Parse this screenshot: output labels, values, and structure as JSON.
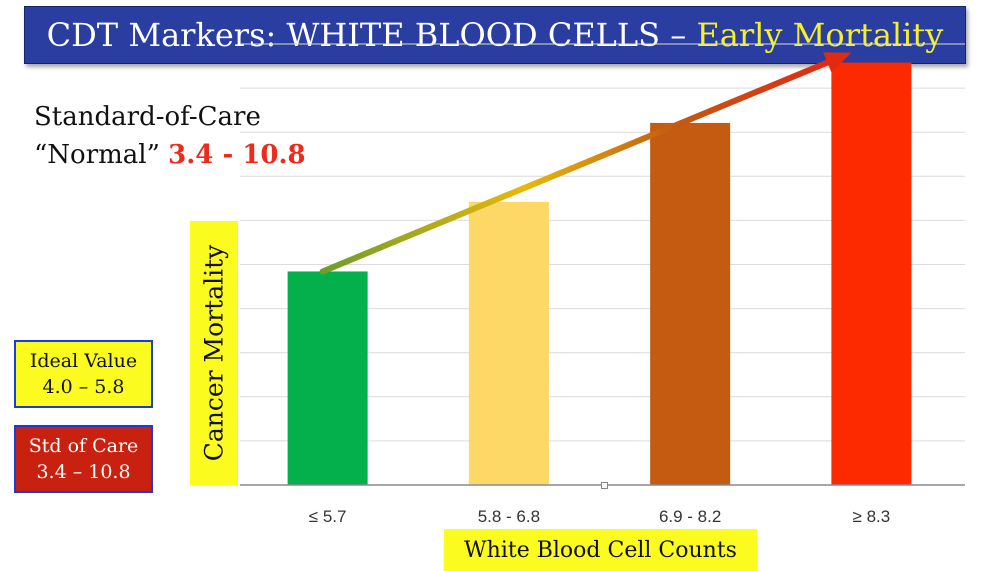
{
  "title": {
    "main": "CDT Markers: WHITE BLOOD CELLS –",
    "accent": "Early Mortality"
  },
  "standard_of_care": {
    "line1": "Standard-of-Care",
    "line2_prefix": "“Normal”",
    "range": "3.4 - 10.8"
  },
  "ideal_box": {
    "line1": "Ideal Value",
    "line2": "4.0 – 5.8"
  },
  "std_box": {
    "line1": "Std of Care",
    "line2": "3.4 – 10.8"
  },
  "colors": {
    "title_bg": "#2a3da0",
    "title_accent": "#f4f02a",
    "label_highlight": "#fbfb20",
    "std_box_bg": "#c8210f",
    "soc_range": "#ee2a1a"
  },
  "chart_data": {
    "type": "bar",
    "categories": [
      "≤ 5.7",
      "5.8 - 6.8",
      "6.9 - 8.2",
      "≥ 8.3"
    ],
    "values": [
      4.6,
      6.1,
      7.8,
      9.1
    ],
    "colors": [
      "#03b04c",
      "#fdd866",
      "#c55b11",
      "#fd2a00"
    ],
    "xlabel": "White Blood Cell Counts",
    "ylabel": "Cancer Mortality",
    "ylim": [
      0,
      9.5
    ],
    "y_ticks_shown": false,
    "grid": true,
    "trend_arrow": true
  }
}
